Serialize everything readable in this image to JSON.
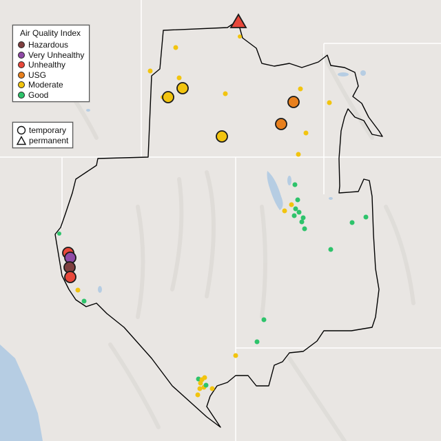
{
  "legend": {
    "title": "Air Quality Index",
    "categories": [
      {
        "label": "Hazardous",
        "color": "#7e3f3f"
      },
      {
        "label": "Very Unhealthy",
        "color": "#8f4aa6"
      },
      {
        "label": "Unhealthy",
        "color": "#e8483b"
      },
      {
        "label": "USG",
        "color": "#e8801e"
      },
      {
        "label": "Moderate",
        "color": "#f2c40f"
      },
      {
        "label": "Good",
        "color": "#2ec36b"
      }
    ]
  },
  "monitor_types": [
    {
      "label": "temporary",
      "shape": "circle"
    },
    {
      "label": "permanent",
      "shape": "triangle"
    }
  ],
  "colors": {
    "land": "#e9e6e3",
    "water": "#b6cde3",
    "boundary": "#000000",
    "state_lines": "#ffffff"
  }
}
